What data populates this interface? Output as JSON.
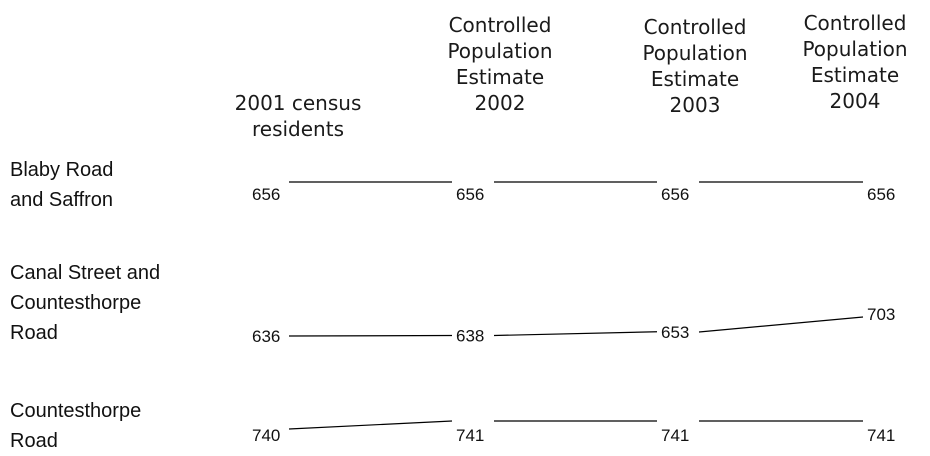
{
  "chart_data": {
    "type": "line",
    "categories": [
      [
        "2001 census",
        "residents"
      ],
      [
        "Controlled",
        "Population",
        "Estimate",
        "2002"
      ],
      [
        "Controlled",
        "Population",
        "Estimate",
        "2003"
      ],
      [
        "Controlled",
        "Population",
        "Estimate",
        "2004"
      ]
    ],
    "series": [
      {
        "name": [
          "Blaby Road",
          "and Saffron"
        ],
        "values": [
          656,
          656,
          656,
          656
        ]
      },
      {
        "name": [
          "Canal Street and",
          "Countesthorpe",
          "Road"
        ],
        "values": [
          636,
          638,
          653,
          703
        ]
      },
      {
        "name": [
          "Countesthorpe",
          "Road"
        ],
        "values": [
          740,
          741,
          741,
          741
        ]
      }
    ],
    "line_color": "#000000"
  }
}
